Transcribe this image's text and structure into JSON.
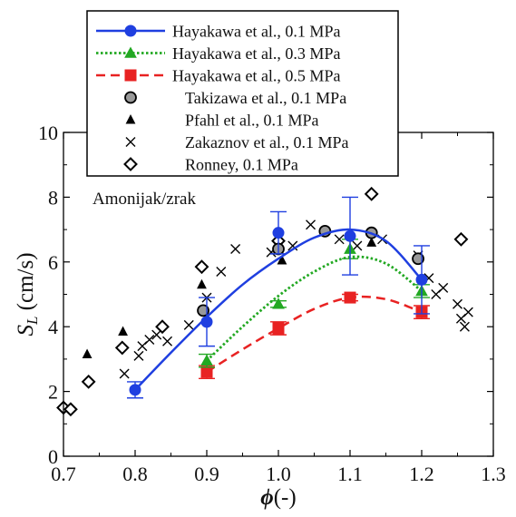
{
  "chart_data": {
    "type": "scatter",
    "xlabel": "ϕ(-)",
    "ylabel": "S_L (cm/s)",
    "xlim": [
      0.7,
      1.3
    ],
    "ylim": [
      0,
      10
    ],
    "xticks": [
      "0.7",
      "0.8",
      "0.9",
      "1.0",
      "1.1",
      "1.2",
      "1.3"
    ],
    "yticks": [
      "0",
      "2",
      "4",
      "6",
      "8",
      "10"
    ],
    "annotation": "Amonijak/zrak",
    "legend_position": "top",
    "series": [
      {
        "name": "Hayakawa et al., 0.1 MPa",
        "style": "line-markers",
        "marker": "circle",
        "color": "#1f3fe0",
        "dash": "solid",
        "points": [
          [
            0.8,
            2.05
          ],
          [
            0.9,
            4.15
          ],
          [
            1.0,
            6.9
          ],
          [
            1.1,
            6.8
          ],
          [
            1.2,
            5.45
          ]
        ],
        "error": [
          0.25,
          0.75,
          0.65,
          1.2,
          1.05
        ],
        "curve": [
          [
            0.8,
            2.05
          ],
          [
            0.85,
            3.2
          ],
          [
            0.9,
            4.3
          ],
          [
            0.95,
            5.3
          ],
          [
            1.0,
            6.1
          ],
          [
            1.05,
            6.75
          ],
          [
            1.1,
            7.0
          ],
          [
            1.15,
            6.65
          ],
          [
            1.2,
            5.45
          ]
        ]
      },
      {
        "name": "Hayakawa et al., 0.3 MPa",
        "style": "line-markers",
        "marker": "triangle",
        "color": "#22a822",
        "dash": "dotted",
        "points": [
          [
            0.9,
            2.95
          ],
          [
            1.0,
            4.7
          ],
          [
            1.1,
            6.4
          ],
          [
            1.2,
            5.1
          ]
        ],
        "error": [
          0.2,
          0.1,
          0.3,
          0.2
        ],
        "curve": [
          [
            0.9,
            2.95
          ],
          [
            0.95,
            4.0
          ],
          [
            1.0,
            4.95
          ],
          [
            1.05,
            5.7
          ],
          [
            1.1,
            6.15
          ],
          [
            1.15,
            5.95
          ],
          [
            1.2,
            5.1
          ]
        ]
      },
      {
        "name": "Hayakawa et al., 0.5 MPa",
        "style": "line-markers",
        "marker": "square",
        "color": "#e82222",
        "dash": "dashed",
        "points": [
          [
            0.9,
            2.6
          ],
          [
            1.0,
            3.95
          ],
          [
            1.1,
            4.9
          ],
          [
            1.2,
            4.45
          ]
        ],
        "error": [
          0.2,
          0.2,
          0.1,
          0.2
        ],
        "curve": [
          [
            0.9,
            2.6
          ],
          [
            0.95,
            3.3
          ],
          [
            1.0,
            3.95
          ],
          [
            1.05,
            4.55
          ],
          [
            1.1,
            4.9
          ],
          [
            1.15,
            4.85
          ],
          [
            1.2,
            4.45
          ]
        ]
      },
      {
        "name": "Takizawa et al., 0.1 MPa",
        "style": "markers",
        "marker": "circle-gray",
        "color": "#999999",
        "points": [
          [
            0.895,
            4.5
          ],
          [
            1.0,
            6.4
          ],
          [
            1.065,
            6.95
          ],
          [
            1.13,
            6.9
          ],
          [
            1.195,
            6.1
          ]
        ]
      },
      {
        "name": "Pfahl et al., 0.1 MPa",
        "style": "markers",
        "marker": "triangle-black",
        "color": "#000000",
        "points": [
          [
            0.733,
            3.15
          ],
          [
            0.783,
            3.85
          ],
          [
            0.893,
            5.3
          ],
          [
            1.005,
            6.05
          ],
          [
            1.13,
            6.6
          ]
        ]
      },
      {
        "name": "Zakaznov et al., 0.1 MPa",
        "style": "markers",
        "marker": "cross",
        "color": "#000000",
        "points": [
          [
            0.785,
            2.55
          ],
          [
            0.805,
            3.1
          ],
          [
            0.81,
            3.4
          ],
          [
            0.82,
            3.6
          ],
          [
            0.83,
            3.75
          ],
          [
            0.845,
            3.55
          ],
          [
            0.875,
            4.05
          ],
          [
            0.9,
            4.9
          ],
          [
            0.92,
            5.7
          ],
          [
            0.94,
            6.4
          ],
          [
            0.99,
            6.3
          ],
          [
            1.02,
            6.5
          ],
          [
            1.045,
            7.15
          ],
          [
            1.085,
            6.7
          ],
          [
            1.11,
            6.5
          ],
          [
            1.145,
            6.7
          ],
          [
            1.195,
            6.2
          ],
          [
            1.21,
            5.5
          ],
          [
            1.22,
            5.0
          ],
          [
            1.23,
            5.2
          ],
          [
            1.25,
            4.7
          ],
          [
            1.255,
            4.25
          ],
          [
            1.26,
            4.0
          ],
          [
            1.265,
            4.45
          ]
        ]
      },
      {
        "name": "Ronney, 0.1 MPa",
        "style": "markers",
        "marker": "diamond",
        "color": "#000000",
        "points": [
          [
            0.7,
            1.5
          ],
          [
            0.71,
            1.45
          ],
          [
            0.735,
            2.3
          ],
          [
            0.782,
            3.35
          ],
          [
            0.838,
            4.0
          ],
          [
            0.893,
            5.85
          ],
          [
            1.0,
            6.65
          ],
          [
            1.13,
            8.1
          ],
          [
            1.255,
            6.7
          ]
        ]
      }
    ]
  }
}
